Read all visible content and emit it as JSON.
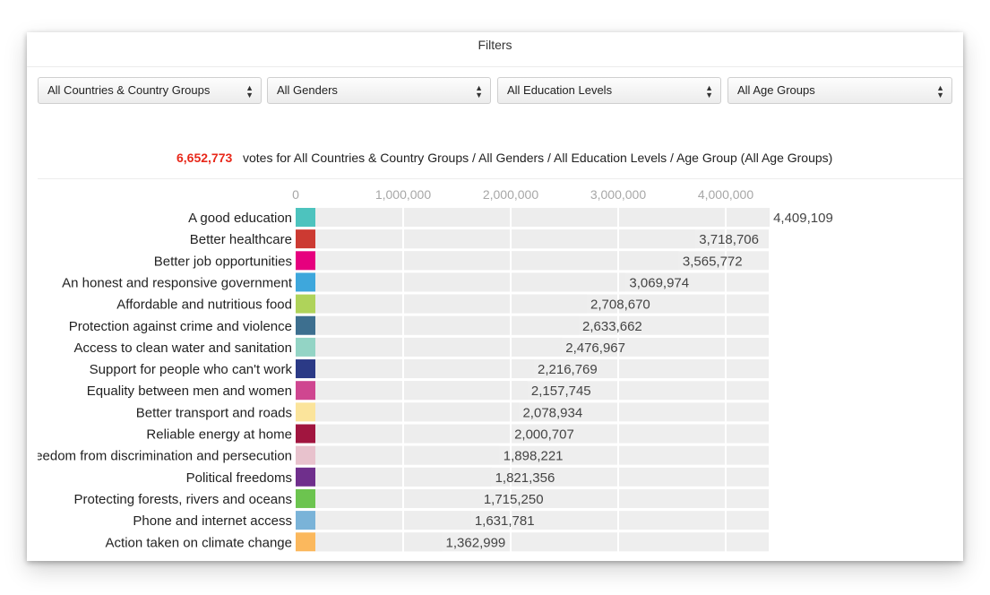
{
  "filters": {
    "title": "Filters",
    "selects": [
      {
        "name": "country-select",
        "value": "All Countries & Country Groups"
      },
      {
        "name": "gender-select",
        "value": "All Genders"
      },
      {
        "name": "education-select",
        "value": "All Education Levels"
      },
      {
        "name": "age-select",
        "value": "All Age Groups"
      }
    ]
  },
  "summary": {
    "total": "6,652,773",
    "text": "votes for All Countries & Country Groups / All Genders / All Education Levels / Age Group (All Age Groups)"
  },
  "colors": {
    "track": "#eeeeee",
    "total_highlight": "#e8281a"
  },
  "chart_data": {
    "type": "bar",
    "orientation": "horizontal",
    "xlim": [
      0,
      4400000
    ],
    "ticks": [
      0,
      1000000,
      2000000,
      3000000,
      4000000
    ],
    "tick_labels": [
      "0",
      "1,000,000",
      "2,000,000",
      "3,000,000",
      "4,000,000"
    ],
    "grid": true,
    "categories": [
      "A good education",
      "Better healthcare",
      "Better job opportunities",
      "An honest and responsive government",
      "Affordable and nutritious food",
      "Protection against crime and violence",
      "Access to clean water and sanitation",
      "Support for people who can't work",
      "Equality between men and women",
      "Better transport and roads",
      "Reliable energy at home",
      "Freedom from discrimination and persecution",
      "Political freedoms",
      "Protecting forests, rivers and oceans",
      "Phone and internet access",
      "Action taken on climate change"
    ],
    "values": [
      4409109,
      3718706,
      3565772,
      3069974,
      2708670,
      2633662,
      2476967,
      2216769,
      2157745,
      2078934,
      2000707,
      1898221,
      1821356,
      1715250,
      1631781,
      1362999
    ],
    "value_labels": [
      "4,409,109",
      "3,718,706",
      "3,565,772",
      "3,069,974",
      "2,708,670",
      "2,633,662",
      "2,476,967",
      "2,216,769",
      "2,157,745",
      "2,078,934",
      "2,000,707",
      "1,898,221",
      "1,821,356",
      "1,715,250",
      "1,631,781",
      "1,362,999"
    ],
    "colors": [
      "#4dc3be",
      "#cc3a32",
      "#e6007e",
      "#3ea7dc",
      "#afd35a",
      "#3d6f8f",
      "#93d4c5",
      "#2b3a86",
      "#cf4690",
      "#fbe49b",
      "#a1153f",
      "#e8c2cd",
      "#6f2f8c",
      "#6cc44f",
      "#7ab3d8",
      "#fbb85d"
    ]
  }
}
